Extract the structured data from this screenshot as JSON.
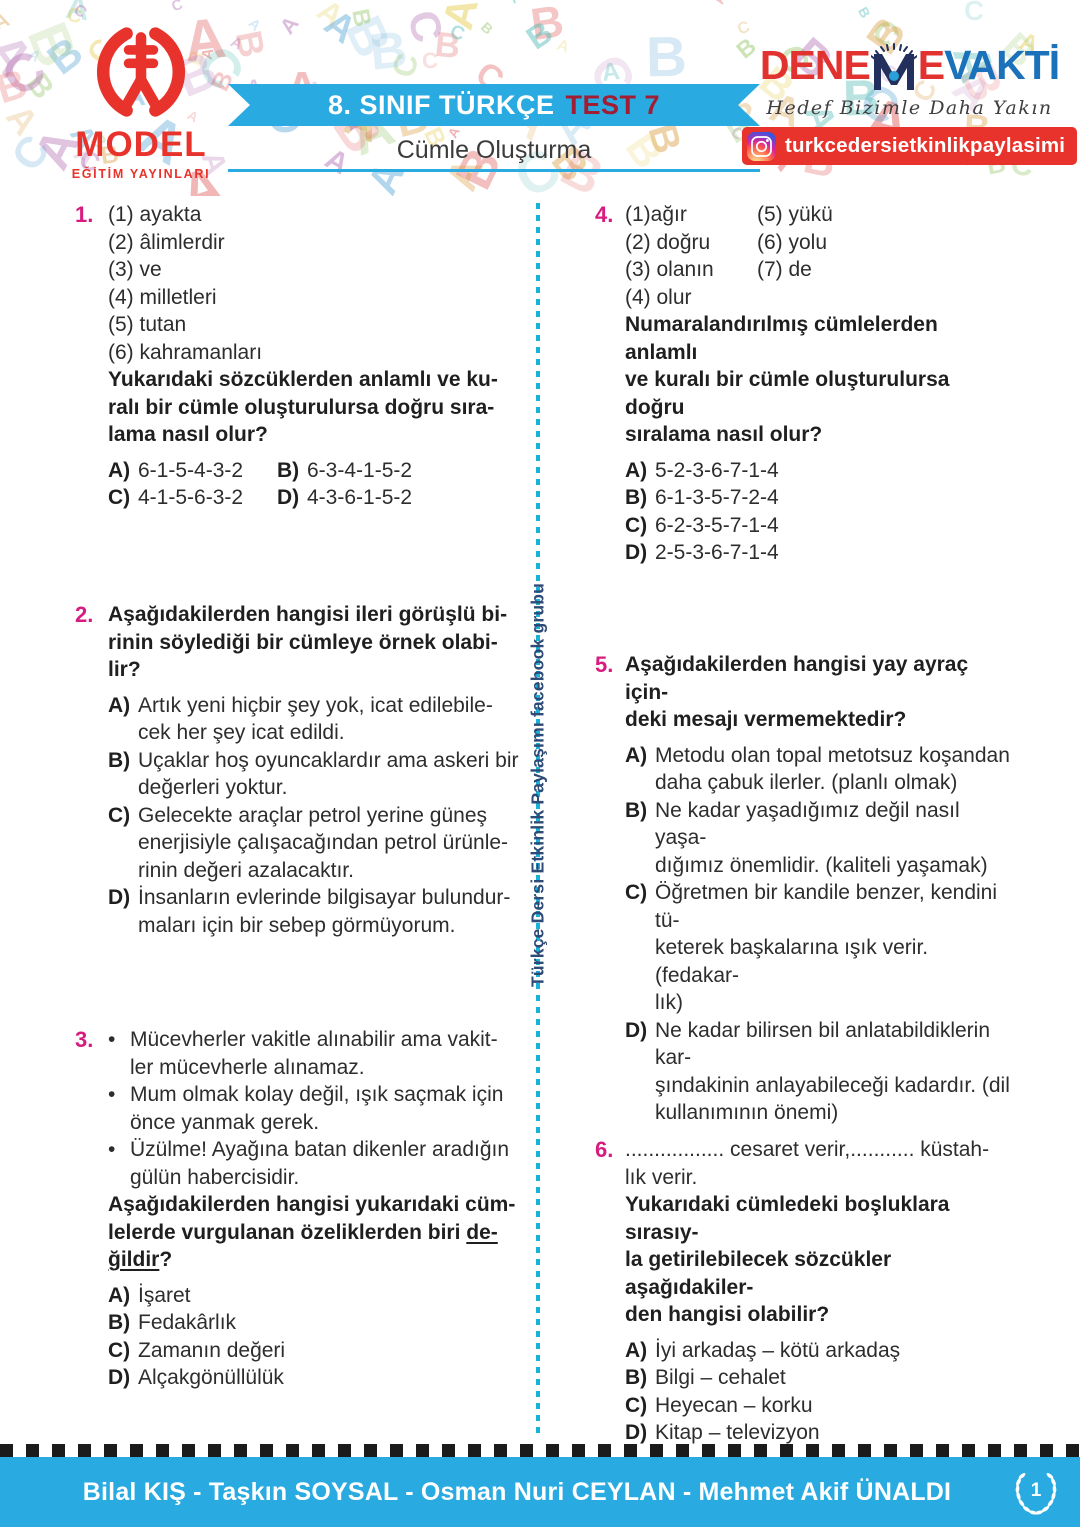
{
  "header": {
    "brand": {
      "name": "MODEL",
      "subtitle": "EĞİTİM YAYINLARI"
    },
    "banner": {
      "title": "8. SINIF TÜRKÇE",
      "test_label": "TEST 7"
    },
    "section_subtitle": "Cümle Oluşturma",
    "denemevakti": {
      "part1": "DENE",
      "part2": "E",
      "part3": "VAKTİ",
      "tagline": "Hedef Bizimle Daha Yakın"
    },
    "instagram_handle": "turkcedersietkinlikpaylasimi"
  },
  "divider": {
    "label": "Türkçe Dersi Etkinlik Paylaşımı facebook grubu"
  },
  "icons": {
    "bullet": "•",
    "instagram": "instagram-camera",
    "clock_m": "clock-hands-m",
    "laurel": "laurel-wreath"
  },
  "colors": {
    "accent_blue": "#29aae1",
    "accent_red": "#e8332c",
    "question_magenta": "#d81b7f",
    "test_dark_red": "#a11d33",
    "logo_navy": "#23305e",
    "divider_cyan": "#17b3d8",
    "body_text": "#2d2d2d"
  },
  "decor": {
    "letters": [
      "A",
      "B",
      "C"
    ],
    "colors": [
      "#e05252",
      "#49b8b2",
      "#e3c83f",
      "#5aa7d6",
      "#88c057",
      "#d99a3d",
      "#b06ab0"
    ]
  },
  "questions": [
    {
      "number": "1.",
      "items": [
        "(1) ayakta",
        "(2) âlimlerdir",
        "(3) ve",
        "(4) milletleri",
        "(5) tutan",
        "(6) kahramanları"
      ],
      "stem_lines": [
        "Yukarıdaki sözcüklerden anlamlı ve ku-",
        "ralı bir cümle oluşturulursa doğru sıra-",
        "lama nasıl olur?"
      ],
      "options": [
        {
          "label": "A)",
          "text": "6-1-5-4-3-2"
        },
        {
          "label": "B)",
          "text": "6-3-4-1-5-2"
        },
        {
          "label": "C)",
          "text": "4-1-5-6-3-2"
        },
        {
          "label": "D)",
          "text": "4-3-6-1-5-2"
        }
      ]
    },
    {
      "number": "2.",
      "stem_lines": [
        "Aşağıdakilerden hangisi ileri görüşlü bi-",
        "rinin söylediği bir cümleye örnek olabi-",
        "lir?"
      ],
      "options": [
        {
          "label": "A)",
          "lines": [
            "Artık yeni hiçbir şey yok, icat edilebile-",
            "cek her şey icat edildi."
          ]
        },
        {
          "label": "B)",
          "lines": [
            "Uçaklar hoş oyuncaklardır ama askeri bir",
            "değerleri yoktur."
          ]
        },
        {
          "label": "C)",
          "lines": [
            "Gelecekte araçlar petrol yerine güneş",
            "enerjisiyle çalışacağından petrol ürünle-",
            "rinin değeri azalacaktır."
          ]
        },
        {
          "label": "D)",
          "lines": [
            "İnsanların evlerinde bilgisayar bulundur-",
            "maları için bir sebep görmüyorum."
          ]
        }
      ]
    },
    {
      "number": "3.",
      "bullets": [
        {
          "lines": [
            "Mücevherler vakitle alınabilir ama vakit-",
            "ler mücevherle alınamaz."
          ]
        },
        {
          "lines": [
            "Mum olmak kolay değil, ışık saçmak için",
            "önce yanmak gerek."
          ]
        },
        {
          "lines": [
            "Üzülme! Ayağına batan dikenler aradığın",
            "gülün habercisidir."
          ]
        }
      ],
      "stem": {
        "l1": "Aşağıdakilerden hangisi yukarıdaki cüm-",
        "l2": "lelerde vurgulanan özeliklerden biri ",
        "u1": "de-",
        "u2": "ğildir",
        "suffix": "?"
      },
      "options": [
        {
          "label": "A)",
          "text": "İşaret"
        },
        {
          "label": "B)",
          "text": "Fedakârlık"
        },
        {
          "label": "C)",
          "text": "Zamanın değeri"
        },
        {
          "label": "D)",
          "text": "Alçakgönüllülük"
        }
      ]
    },
    {
      "number": "4.",
      "item_pairs": [
        [
          "(1)ağır",
          "(5) yükü"
        ],
        [
          "(2) doğru",
          "(6) yolu"
        ],
        [
          "(3) olanın",
          "(7) de"
        ],
        [
          "(4) olur",
          ""
        ]
      ],
      "stem_lines": [
        "Numaralandırılmış cümlelerden anlamlı",
        "ve kuralı bir cümle oluşturulursa doğru",
        "sıralama nasıl olur?"
      ],
      "options": [
        {
          "label": "A)",
          "text": "5-2-3-6-7-1-4"
        },
        {
          "label": "B)",
          "text": "6-1-3-5-7-2-4"
        },
        {
          "label": "C)",
          "text": "6-2-3-5-7-1-4"
        },
        {
          "label": "D)",
          "text": "2-5-3-6-7-1-4"
        }
      ]
    },
    {
      "number": "5.",
      "stem_lines": [
        "Aşağıdakilerden hangisi yay ayraç için-",
        "deki mesajı vermemektedir?"
      ],
      "options": [
        {
          "label": "A)",
          "lines": [
            "Metodu olan topal metotsuz koşandan",
            "daha çabuk ilerler. (planlı olmak)"
          ]
        },
        {
          "label": "B)",
          "lines": [
            "Ne kadar yaşadığımız değil nasıl yaşa-",
            "dığımız önemlidir. (kaliteli yaşamak)"
          ]
        },
        {
          "label": "C)",
          "lines": [
            "Öğretmen bir kandile benzer, kendini tü-",
            "keterek başkalarına ışık verir. (fedakar-",
            "lık)"
          ]
        },
        {
          "label": "D)",
          "lines": [
            "Ne kadar bilirsen bil anlatabildiklerin kar-",
            "şındakinin anlayabileceği kadardır. (dil",
            "kullanımının önemi)"
          ]
        }
      ]
    },
    {
      "number": "6.",
      "lead_lines": [
        "................. cesaret verir,........... küstah-",
        "lık verir."
      ],
      "stem_lines": [
        "Yukarıdaki cümledeki boşluklara sırasıy-",
        "la getirilebilecek sözcükler aşağıdakiler-",
        "den hangisi olabilir?"
      ],
      "options": [
        {
          "label": "A)",
          "text": "İyi arkadaş – kötü arkadaş"
        },
        {
          "label": "B)",
          "text": "Bilgi – cehalet"
        },
        {
          "label": "C)",
          "text": "Heyecan – korku"
        },
        {
          "label": "D)",
          "text": "Kitap – televizyon"
        }
      ]
    }
  ],
  "footer": {
    "authors": "Bilal KIŞ - Taşkın SOYSAL - Osman Nuri CEYLAN - Mehmet Akif ÜNALDI",
    "page_number": "1"
  }
}
